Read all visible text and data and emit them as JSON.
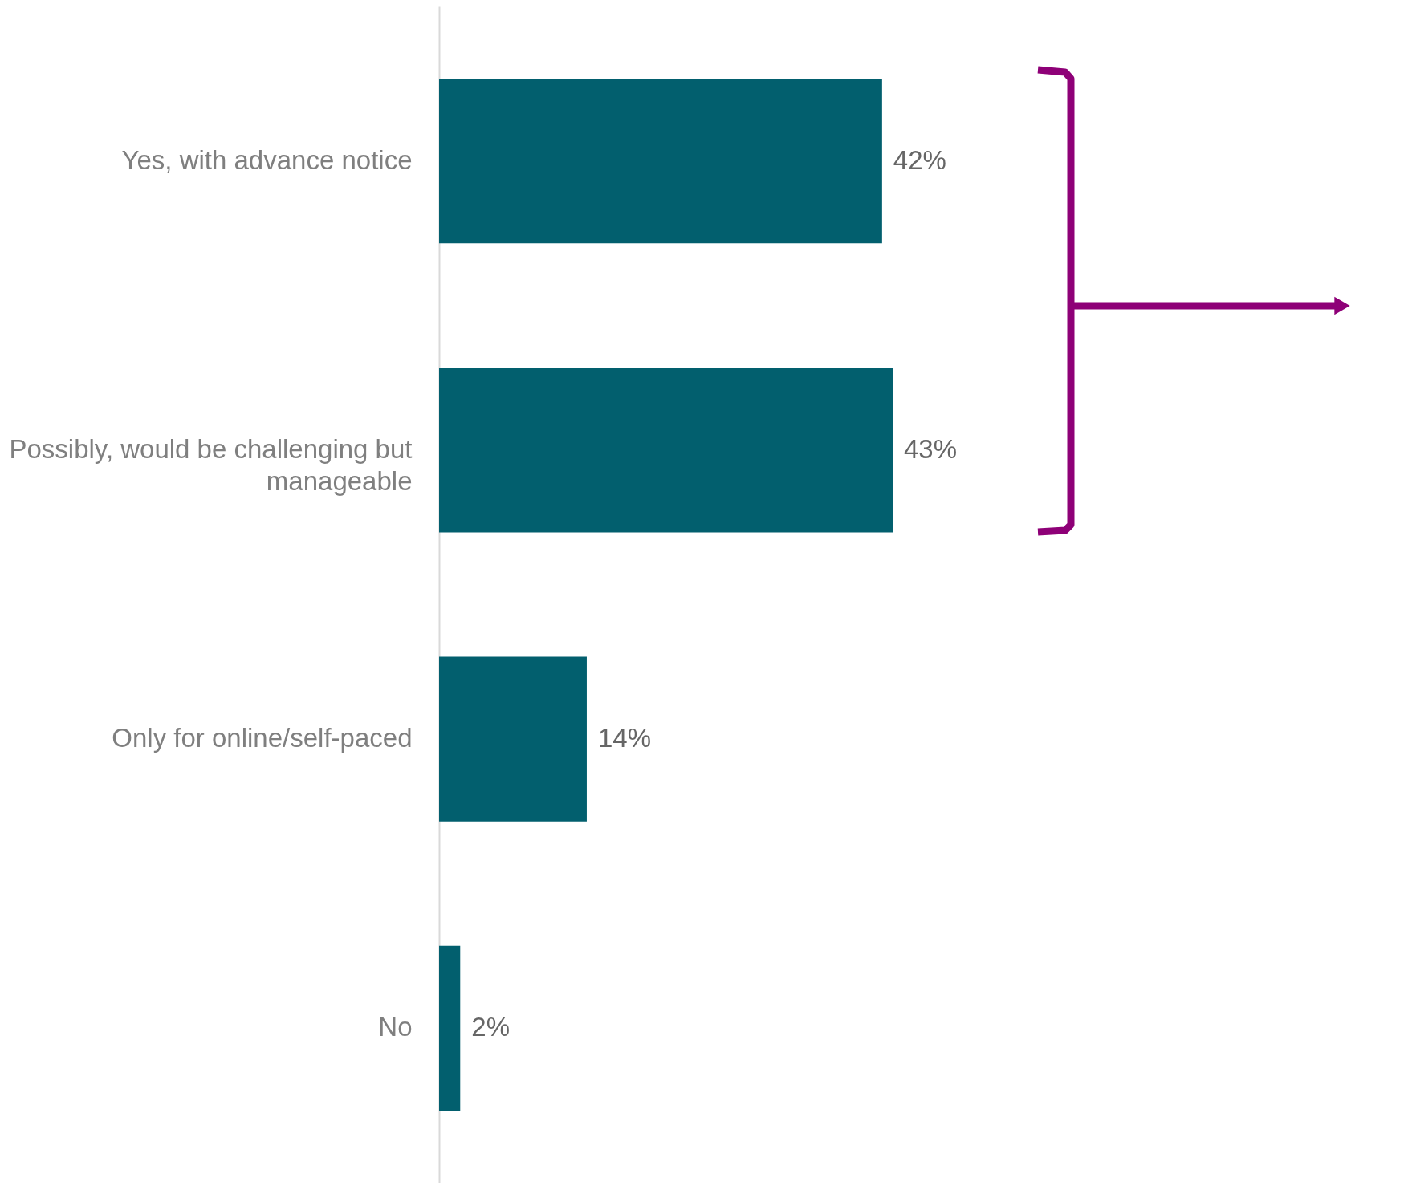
{
  "chart_data": {
    "type": "bar",
    "orientation": "horizontal",
    "categories": [
      "Yes, with advance notice",
      "Possibly, would be challenging but manageable",
      "Only for online/self-paced",
      "No"
    ],
    "values": [
      42,
      43,
      14,
      2
    ],
    "value_labels": [
      "42%",
      "43%",
      "14%",
      "2%"
    ],
    "color": "#025f6e",
    "tick_labels": "y",
    "grid": false
  }
}
